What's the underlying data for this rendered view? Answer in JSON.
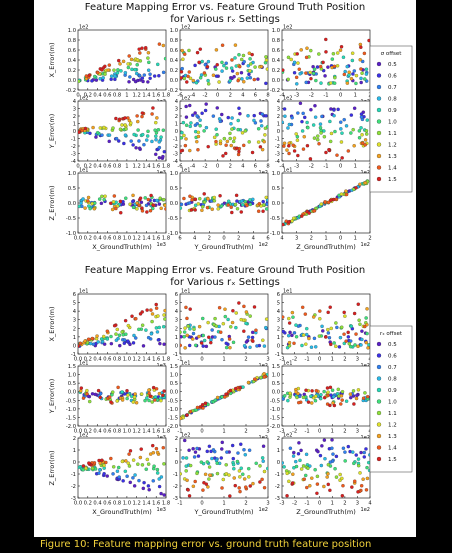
{
  "caption": "Figure 10: Feature mapping error vs. ground truth feature position",
  "figures": [
    {
      "title_line1": "Feature Mapping Error vs. Feature Ground Truth Position",
      "title_line2": "for Various rₓ Settings"
    },
    {
      "title_line1": "Feature Mapping Error vs. Feature Ground Truth Position",
      "title_line2": "for Various rₓ Settings"
    }
  ],
  "legend": {
    "figure1_title": "σ offset",
    "figure2_title": "rₓ offset",
    "entries": [
      "0.5",
      "0.6",
      "0.7",
      "0.8",
      "0.9",
      "1.0",
      "1.1",
      "1.2",
      "1.3",
      "1.4",
      "1.5"
    ],
    "colors": [
      "#5a1fc8",
      "#3a2fe6",
      "#2f7ff0",
      "#29b9e8",
      "#27d9b8",
      "#3ee07a",
      "#8fe23a",
      "#dde02a",
      "#f3a21f",
      "#f05a1c",
      "#d81f1f"
    ]
  },
  "chart_data": [
    {
      "type": "scatter",
      "title": "Feature Mapping Error vs. Feature Ground Truth Position for Various rₓ Settings",
      "rows": [
        "X_Error(m)",
        "Y_Error(m)",
        "Z_Error(m)"
      ],
      "columns": [
        "X_GroundTruth(m)",
        "Y_GroundTruth(m)",
        "Z_GroundTruth(m)"
      ],
      "panels": [
        {
          "row": 0,
          "col": 0,
          "xlim": [
            0,
            1.8
          ],
          "ylim": [
            -0.2,
            1.0
          ],
          "xticks": [
            "0",
            "0.2",
            "0.4",
            "0.6",
            "0.8",
            "1",
            "1.2",
            "1.4",
            "1.6",
            "1.8"
          ],
          "yticks": [
            "-0.2",
            "0.0",
            "0.2",
            "0.4",
            "0.6",
            "0.8",
            "1.0"
          ],
          "xexp": "1e3",
          "yexp": "1e2",
          "trend": "fan-up",
          "ymin": -0.2,
          "ymax": 1.0
        },
        {
          "row": 0,
          "col": 1,
          "xlim": [
            -6,
            8
          ],
          "ylim": [
            -0.2,
            1.0
          ],
          "xticks": [
            "-6",
            "-4",
            "-2",
            "0",
            "2",
            "4",
            "6",
            "8"
          ],
          "yticks": [
            "-0.2",
            "0.0",
            "0.2",
            "0.4",
            "0.6",
            "0.8",
            "1.0"
          ],
          "xexp": "1e2",
          "yexp": "1e2",
          "trend": "cloud",
          "ymin": -0.2,
          "ymax": 1.0
        },
        {
          "row": 0,
          "col": 2,
          "xlim": [
            -4,
            2
          ],
          "ylim": [
            -0.2,
            1.0
          ],
          "xticks": [
            "-4",
            "-3",
            "-2",
            "-1",
            "0",
            "1",
            "2"
          ],
          "yticks": [
            "-0.2",
            "0.0",
            "0.2",
            "0.4",
            "0.6",
            "0.8",
            "1.0"
          ],
          "xexp": "1e2",
          "yexp": "1e2",
          "trend": "cloud",
          "ymin": -0.2,
          "ymax": 1.0
        },
        {
          "row": 1,
          "col": 0,
          "xlim": [
            0,
            1.8
          ],
          "ylim": [
            -4,
            4
          ],
          "xticks": [
            "0",
            "0.2",
            "0.4",
            "0.6",
            "0.8",
            "1",
            "1.2",
            "1.4",
            "1.6",
            "1.8"
          ],
          "yticks": [
            "-4",
            "-3",
            "-2",
            "-1",
            "0",
            "1",
            "2",
            "3",
            "4"
          ],
          "xexp": "1e3",
          "yexp": "1e2",
          "trend": "fan-sym",
          "ymin": -4,
          "ymax": 4
        },
        {
          "row": 1,
          "col": 1,
          "xlim": [
            -6,
            8
          ],
          "ylim": [
            -4,
            4
          ],
          "xticks": [
            "-6",
            "-4",
            "-2",
            "0",
            "2",
            "4",
            "6",
            "8"
          ],
          "yticks": [
            "-4",
            "-3",
            "-2",
            "-1",
            "0",
            "1",
            "2",
            "3",
            "4"
          ],
          "xexp": "1e2",
          "yexp": "1e2",
          "trend": "band",
          "ymin": -4,
          "ymax": 4
        },
        {
          "row": 1,
          "col": 2,
          "xlim": [
            -4,
            2
          ],
          "ylim": [
            -4,
            4
          ],
          "xticks": [
            "-4",
            "-3",
            "-2",
            "-1",
            "0",
            "1",
            "2"
          ],
          "yticks": [
            "-4",
            "-3",
            "-2",
            "-1",
            "0",
            "1",
            "2",
            "3",
            "4"
          ],
          "xexp": "1e2",
          "yexp": "1e2",
          "trend": "band",
          "ymin": -4,
          "ymax": 4
        },
        {
          "row": 2,
          "col": 0,
          "xlim": [
            0,
            1.8
          ],
          "ylim": [
            -1.0,
            1.0
          ],
          "xticks": [
            "0.0",
            "0.2",
            "0.4",
            "0.6",
            "0.8",
            "1.0",
            "1.2",
            "1.4",
            "1.6",
            "1.8"
          ],
          "yticks": [
            "-1.0",
            "-0.5",
            "0.0",
            "0.5",
            "1.0"
          ],
          "xexp": "1e3",
          "yexp": "1e1",
          "trend": "flat",
          "ymin": -1.0,
          "ymax": 1.0
        },
        {
          "row": 2,
          "col": 1,
          "xlim": [
            -6,
            6
          ],
          "ylim": [
            -1.0,
            1.0
          ],
          "xticks": [
            "6",
            "4",
            "2",
            "0",
            "2",
            "4",
            "6"
          ],
          "yticks": [
            "-1.0",
            "-0.5",
            "0.0",
            "0.5",
            "1.0"
          ],
          "xexp": "1e2",
          "yexp": "1e1",
          "trend": "flat",
          "ymin": -1.0,
          "ymax": 1.0
        },
        {
          "row": 2,
          "col": 2,
          "xlim": [
            -4,
            2
          ],
          "ylim": [
            -1.0,
            1.0
          ],
          "xticks": [
            "4",
            "3",
            "2",
            "1",
            "0",
            "1",
            "2"
          ],
          "yticks": [
            "-1.0",
            "-0.5",
            "0.0",
            "0.5",
            "1.0"
          ],
          "xexp": "1e2",
          "yexp": "1e1",
          "trend": "diag",
          "ymin": -1.0,
          "ymax": 1.0
        }
      ]
    },
    {
      "type": "scatter",
      "title": "Feature Mapping Error vs. Feature Ground Truth Position for Various rₓ Settings",
      "rows": [
        "X_Error(m)",
        "Y_Error(m)",
        "Z_Error(m)"
      ],
      "columns": [
        "X_GroundTruth(m)",
        "Y_GroundTruth(m)",
        "Z_GroundTruth(m)"
      ],
      "panels": [
        {
          "row": 0,
          "col": 0,
          "xlim": [
            0,
            1.8
          ],
          "ylim": [
            -1,
            6
          ],
          "xticks": [
            "0.0",
            "0.2",
            "0.4",
            "0.6",
            "0.8",
            "1.0",
            "1.2",
            "1.4",
            "1.6",
            "1.8"
          ],
          "yticks": [
            "-1",
            "0",
            "1",
            "2",
            "3",
            "4",
            "5",
            "6"
          ],
          "xexp": "1e3",
          "yexp": "1e1",
          "trend": "fan-up",
          "ymin": -1,
          "ymax": 6
        },
        {
          "row": 0,
          "col": 1,
          "xlim": [
            -1,
            3
          ],
          "ylim": [
            -1,
            6
          ],
          "xticks": [
            "-1",
            "0",
            "1",
            "2",
            "3"
          ],
          "yticks": [
            "-1",
            "0",
            "1",
            "2",
            "3",
            "4",
            "5",
            "6"
          ],
          "xexp": "1e2",
          "yexp": "1e1",
          "trend": "cloud",
          "ymin": -1,
          "ymax": 6
        },
        {
          "row": 0,
          "col": 2,
          "xlim": [
            -3,
            4
          ],
          "ylim": [
            -1,
            6
          ],
          "xticks": [
            "-3",
            "-2",
            "-1",
            "0",
            "1",
            "2",
            "3",
            "4"
          ],
          "yticks": [
            "-1",
            "0",
            "1",
            "2",
            "3",
            "4",
            "5",
            "6"
          ],
          "xexp": "1e2",
          "yexp": "1e1",
          "trend": "cloud",
          "ymin": -1,
          "ymax": 6
        },
        {
          "row": 1,
          "col": 0,
          "xlim": [
            0,
            1.8
          ],
          "ylim": [
            -2.0,
            1.5
          ],
          "xticks": [
            "0.0",
            "0.2",
            "0.4",
            "0.6",
            "0.8",
            "1.0",
            "1.2",
            "1.4",
            "1.6",
            "1.8"
          ],
          "yticks": [
            "-2.0",
            "-1.5",
            "-1.0",
            "-0.5",
            "0.0",
            "0.5",
            "1.0",
            "1.5"
          ],
          "xexp": "1e3",
          "yexp": "1e1",
          "trend": "flat",
          "ymin": -2.0,
          "ymax": 1.5
        },
        {
          "row": 1,
          "col": 1,
          "xlim": [
            -1,
            3
          ],
          "ylim": [
            -2.0,
            1.5
          ],
          "xticks": [
            "-1",
            "0",
            "1",
            "2",
            "3"
          ],
          "yticks": [
            "-2.0",
            "-1.5",
            "-1.0",
            "-0.5",
            "0.0",
            "0.5",
            "1.0",
            "1.5"
          ],
          "xexp": "1e2",
          "yexp": "1e1",
          "trend": "diag",
          "ymin": -2.0,
          "ymax": 1.5
        },
        {
          "row": 1,
          "col": 2,
          "xlim": [
            -3,
            4
          ],
          "ylim": [
            -2.0,
            1.5
          ],
          "xticks": [
            "-3",
            "-2",
            "-1",
            "0",
            "1",
            "2",
            "3",
            "4"
          ],
          "yticks": [
            "-2.0",
            "-1.5",
            "-1.0",
            "-0.5",
            "0.0",
            "0.5",
            "1.0",
            "1.5"
          ],
          "xexp": "1e2",
          "yexp": "1e1",
          "trend": "flat",
          "ymin": -2.0,
          "ymax": 1.5
        },
        {
          "row": 2,
          "col": 0,
          "xlim": [
            0,
            1.8
          ],
          "ylim": [
            -3,
            2
          ],
          "xticks": [
            "0.0",
            "0.2",
            "0.4",
            "0.6",
            "0.8",
            "1.0",
            "1.2",
            "1.4",
            "1.6",
            "1.8"
          ],
          "yticks": [
            "-3",
            "-2",
            "-1",
            "0",
            "1",
            "2"
          ],
          "xexp": "1e3",
          "yexp": "1e2",
          "trend": "fan-sym",
          "ymin": -3,
          "ymax": 2
        },
        {
          "row": 2,
          "col": 1,
          "xlim": [
            -1,
            3
          ],
          "ylim": [
            -3,
            2
          ],
          "xticks": [
            "-1",
            "0",
            "1",
            "2",
            "3"
          ],
          "yticks": [
            "-3",
            "-2",
            "-1",
            "0",
            "1",
            "2"
          ],
          "xexp": "1e2",
          "yexp": "1e2",
          "trend": "band",
          "ymin": -3,
          "ymax": 2
        },
        {
          "row": 2,
          "col": 2,
          "xlim": [
            -3,
            4
          ],
          "ylim": [
            -3,
            2
          ],
          "xticks": [
            "-3",
            "-2",
            "-1",
            "0",
            "1",
            "2",
            "3",
            "4"
          ],
          "yticks": [
            "-3",
            "-2",
            "-1",
            "0",
            "1",
            "2"
          ],
          "xexp": "1e2",
          "yexp": "1e2",
          "trend": "band",
          "ymin": -3,
          "ymax": 2
        }
      ]
    }
  ]
}
